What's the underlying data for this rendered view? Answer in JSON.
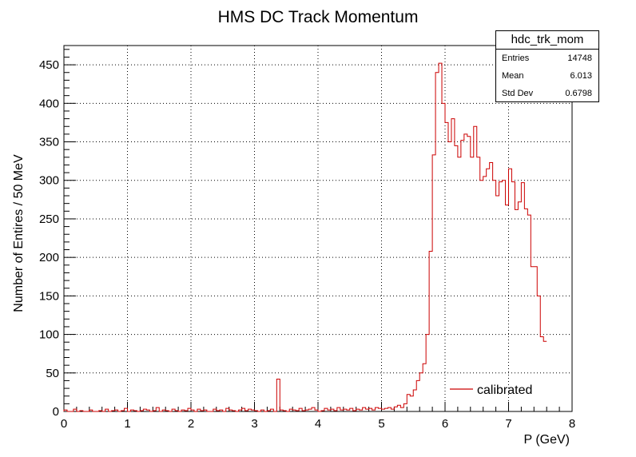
{
  "chart_data": {
    "type": "histogram",
    "title": "HMS DC Track Momentum",
    "xlabel": "P (GeV)",
    "ylabel": "Number of Entires / 50 MeV",
    "xlim": [
      0,
      8
    ],
    "ylim": [
      0,
      475
    ],
    "x_ticks": [
      "0",
      "1",
      "2",
      "3",
      "4",
      "5",
      "6",
      "7",
      "8"
    ],
    "y_ticks": [
      "0",
      "50",
      "100",
      "150",
      "200",
      "250",
      "300",
      "350",
      "400",
      "450"
    ],
    "grid": true,
    "bin_width": 0.05,
    "bin_start": 0.0,
    "line_color": "#cc0000",
    "series": [
      {
        "name": "calibrated",
        "values": [
          2,
          0,
          0,
          3,
          0,
          1,
          0,
          0,
          2,
          0,
          0,
          1,
          0,
          3,
          0,
          1,
          2,
          0,
          1,
          4,
          0,
          2,
          1,
          0,
          1,
          3,
          2,
          0,
          1,
          5,
          0,
          2,
          1,
          0,
          3,
          1,
          0,
          2,
          1,
          4,
          2,
          0,
          3,
          1,
          2,
          0,
          0,
          3,
          1,
          2,
          0,
          4,
          2,
          1,
          0,
          2,
          4,
          1,
          3,
          2,
          1,
          0,
          2,
          0,
          1,
          3,
          0,
          42,
          2,
          1,
          0,
          3,
          2,
          1,
          4,
          1,
          2,
          3,
          5,
          2,
          0,
          1,
          4,
          2,
          3,
          1,
          5,
          2,
          3,
          2,
          4,
          1,
          3,
          2,
          5,
          3,
          4,
          2,
          5,
          4,
          3,
          4,
          5,
          3,
          6,
          8,
          5,
          10,
          22,
          20,
          28,
          40,
          50,
          62,
          100,
          208,
          333,
          440,
          452,
          400,
          375,
          350,
          380,
          345,
          330,
          352,
          360,
          357,
          330,
          370,
          330,
          300,
          305,
          315,
          323,
          300,
          280,
          298,
          300,
          268,
          315,
          298,
          262,
          272,
          297,
          263,
          255,
          188,
          188,
          150,
          97,
          91
        ],
        "values_note_start": 0.0
      }
    ],
    "stats": {
      "title": "hdc_trk_mom",
      "rows": [
        {
          "label": "Entries",
          "value": "14748"
        },
        {
          "label": "Mean",
          "value": "6.013"
        },
        {
          "label": "Std Dev",
          "value": "0.6798"
        }
      ]
    },
    "legend": {
      "position": "bottom-right",
      "label": "calibrated"
    }
  }
}
